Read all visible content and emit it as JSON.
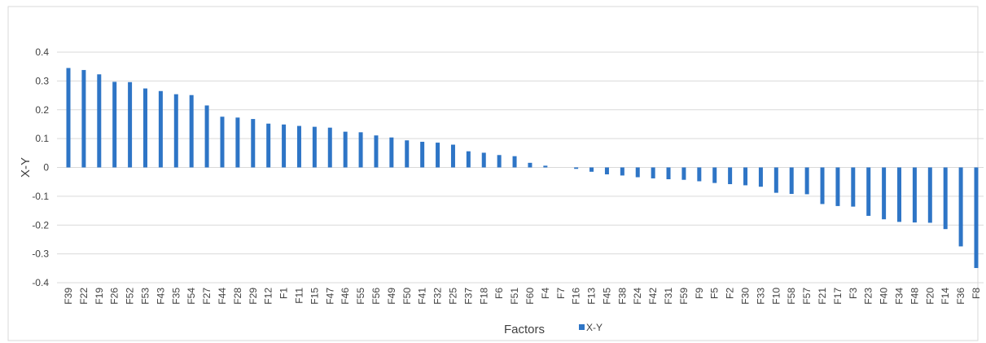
{
  "chart_data": {
    "type": "bar",
    "title": "",
    "xlabel": "Factors",
    "ylabel": "X-Y",
    "ylim": [
      -0.4,
      0.4
    ],
    "yticks": [
      0.4,
      0.3,
      0.2,
      0.1,
      0,
      -0.1,
      -0.2,
      -0.3,
      -0.4
    ],
    "ytick_labels": [
      "0.4",
      "0.3",
      "0.2",
      "0.1",
      "0",
      "-0.1",
      "-0.2",
      "-0.3",
      "-0.4"
    ],
    "grid": true,
    "legend_position": "bottom",
    "bar_color": "#2e75c6",
    "categories": [
      "F39",
      "F22",
      "F19",
      "F26",
      "F52",
      "F53",
      "F43",
      "F35",
      "F54",
      "F27",
      "F44",
      "F28",
      "F29",
      "F12",
      "F1",
      "F11",
      "F15",
      "F47",
      "F46",
      "F55",
      "F56",
      "F49",
      "F50",
      "F41",
      "F32",
      "F25",
      "F37",
      "F18",
      "F6",
      "F51",
      "F60",
      "F4",
      "F7",
      "F16",
      "F13",
      "F45",
      "F38",
      "F24",
      "F42",
      "F31",
      "F59",
      "F9",
      "F5",
      "F2",
      "F30",
      "F33",
      "F10",
      "F58",
      "F57",
      "F21",
      "F17",
      "F3",
      "F23",
      "F40",
      "F34",
      "F48",
      "F20",
      "F14",
      "F36",
      "F8"
    ],
    "series": [
      {
        "name": "X-Y",
        "values": [
          0.345,
          0.338,
          0.323,
          0.297,
          0.296,
          0.274,
          0.265,
          0.254,
          0.251,
          0.215,
          0.176,
          0.173,
          0.168,
          0.152,
          0.149,
          0.144,
          0.141,
          0.138,
          0.124,
          0.122,
          0.111,
          0.104,
          0.094,
          0.089,
          0.086,
          0.079,
          0.056,
          0.051,
          0.043,
          0.039,
          0.016,
          0.006,
          0.0,
          -0.005,
          -0.015,
          -0.024,
          -0.028,
          -0.034,
          -0.038,
          -0.041,
          -0.043,
          -0.048,
          -0.054,
          -0.058,
          -0.062,
          -0.067,
          -0.088,
          -0.092,
          -0.093,
          -0.127,
          -0.134,
          -0.136,
          -0.168,
          -0.18,
          -0.189,
          -0.191,
          -0.192,
          -0.214,
          -0.274,
          -0.349
        ]
      }
    ]
  }
}
